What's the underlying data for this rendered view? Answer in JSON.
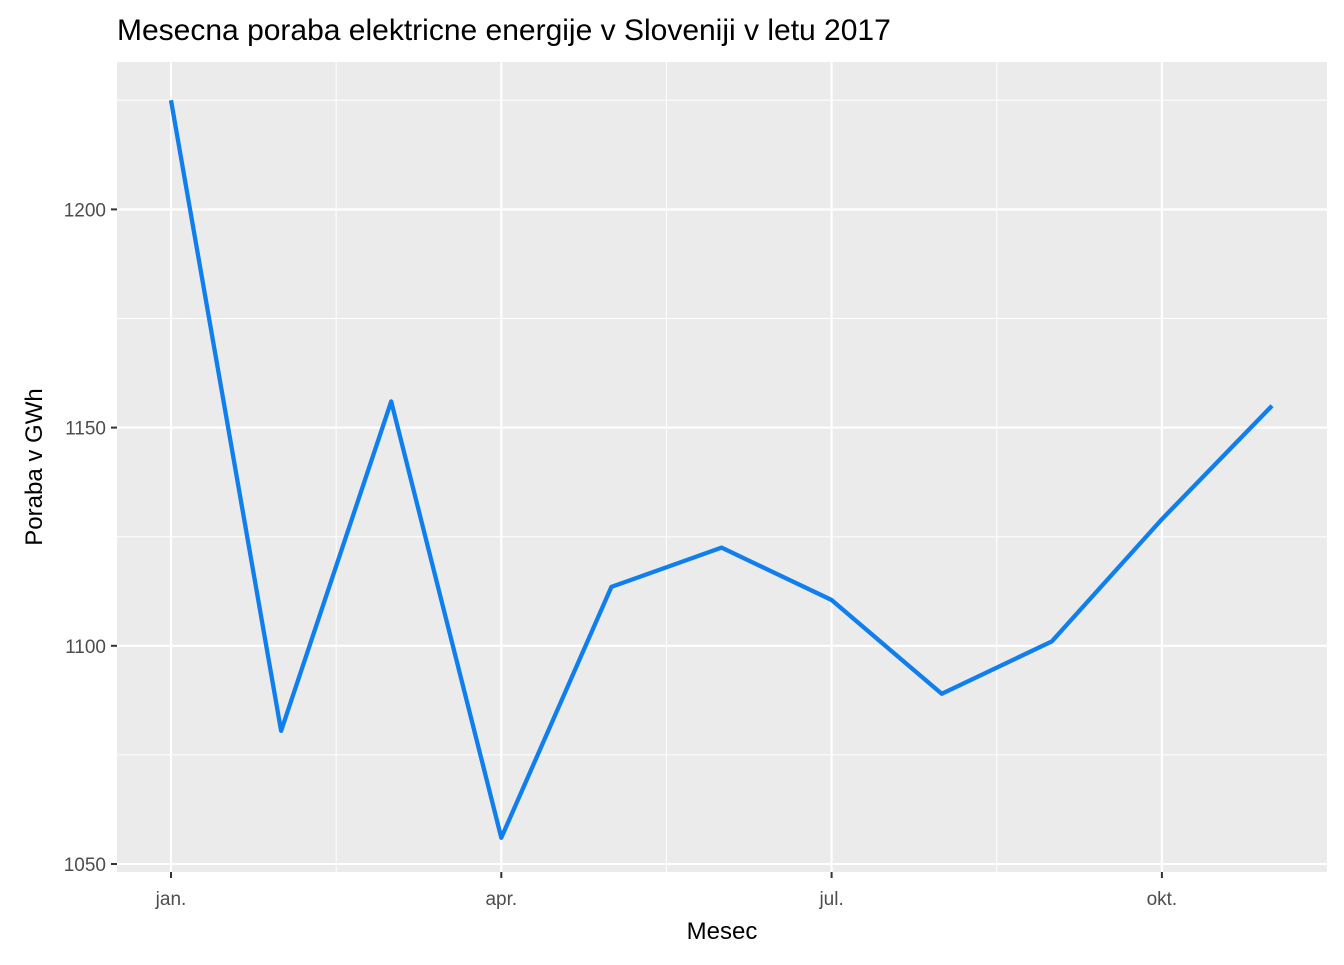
{
  "chart_data": {
    "type": "line",
    "title": "Mesecna poraba elektricne energije v Sloveniji v letu 2017",
    "xlabel": "Mesec",
    "ylabel": "Poraba v GWh",
    "x": [
      "2017-01",
      "2017-02",
      "2017-03",
      "2017-04",
      "2017-05",
      "2017-06",
      "2017-07",
      "2017-08",
      "2017-09",
      "2017-10",
      "2017-11"
    ],
    "x_ticks": [
      {
        "x": "2017-01",
        "label": "jan."
      },
      {
        "x": "2017-04",
        "label": "apr."
      },
      {
        "x": "2017-07",
        "label": "jul."
      },
      {
        "x": "2017-10",
        "label": "okt."
      }
    ],
    "series": [
      {
        "values": [
          1225,
          1080.5,
          1156,
          1056,
          1113.5,
          1122.5,
          1110.5,
          1089,
          1101,
          1129,
          1155
        ],
        "color": "#0f7ff0"
      }
    ],
    "y_ticks": [
      1050,
      1100,
      1150,
      1200
    ],
    "ylim": [
      1048,
      1234
    ],
    "grid": true,
    "legend": "none",
    "panel_background": "#ebebeb",
    "grid_color": "#ffffff"
  }
}
